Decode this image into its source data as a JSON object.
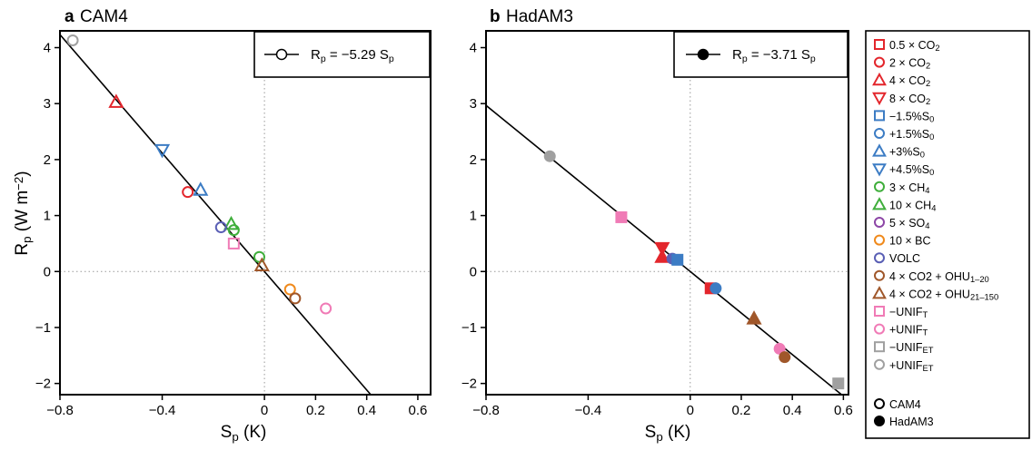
{
  "chart_data": [
    {
      "type": "scatter",
      "panel_letter": "a",
      "title": "CAM4",
      "xlabel": "S_p (K)",
      "ylabel": "R_p (W m^-2)",
      "xlim": [
        -0.8,
        0.65
      ],
      "ylim": [
        -2.2,
        4.3
      ],
      "xticks": [
        -0.8,
        -0.4,
        0,
        0.2,
        0.4,
        0.6
      ],
      "xticklabels": [
        "−0.8",
        "−0.4",
        "0",
        "0.2",
        "0.4",
        "0.6"
      ],
      "yticks": [
        -2,
        -1,
        0,
        1,
        2,
        3,
        4
      ],
      "yticklabels": [
        "−2",
        "−1",
        "0",
        "1",
        "2",
        "3",
        "4"
      ],
      "fit_slope": -5.29,
      "fit_label": "R_p = −5.29 S_p",
      "marker_fill": "open",
      "points": [
        {
          "exp": "4×CO2",
          "x": -0.58,
          "y": 3.03
        },
        {
          "exp": "2×CO2",
          "x": -0.3,
          "y": 1.42
        },
        {
          "exp": "+4.5%S0",
          "x": -0.4,
          "y": 2.17
        },
        {
          "exp": "+3%S0",
          "x": -0.25,
          "y": 1.46
        },
        {
          "exp": "10×CH4",
          "x": -0.13,
          "y": 0.85
        },
        {
          "exp": "3×CH4",
          "x": -0.12,
          "y": 0.74
        },
        {
          "exp": "VOLC",
          "x": -0.17,
          "y": 0.79
        },
        {
          "exp": "−UNIFT",
          "x": -0.12,
          "y": 0.5
        },
        {
          "exp": "3×CH4",
          "x": -0.02,
          "y": 0.26
        },
        {
          "exp": "4×CO2+OHU21–150",
          "x": -0.01,
          "y": 0.11
        },
        {
          "exp": "10×BC",
          "x": 0.1,
          "y": -0.32
        },
        {
          "exp": "4×CO2+OHU1–20",
          "x": 0.12,
          "y": -0.48
        },
        {
          "exp": "+UNIFT",
          "x": 0.24,
          "y": -0.66
        },
        {
          "exp": "+UNIFET",
          "x": -0.75,
          "y": 4.13
        }
      ]
    },
    {
      "type": "scatter",
      "panel_letter": "b",
      "title": "HadAM3",
      "xlabel": "S_p (K)",
      "ylabel": "",
      "xlim": [
        -0.8,
        0.62
      ],
      "ylim": [
        -2.2,
        4.3
      ],
      "xticks": [
        -0.8,
        -0.4,
        0,
        0.2,
        0.4,
        0.6
      ],
      "xticklabels": [
        "−0.8",
        "−0.4",
        "0",
        "0.2",
        "0.4",
        "0.6"
      ],
      "yticks": [
        -2,
        -1,
        0,
        1,
        2,
        3,
        4
      ],
      "yticklabels": [
        "−2",
        "−1",
        "0",
        "1",
        "2",
        "3",
        "4"
      ],
      "fit_slope": -3.71,
      "fit_label": "R_p = −3.71 S_p",
      "marker_fill": "filled",
      "points": [
        {
          "exp": "+UNIFET",
          "x": -0.55,
          "y": 2.06
        },
        {
          "exp": "−UNIFT",
          "x": -0.27,
          "y": 0.97
        },
        {
          "exp": "8×CO2",
          "x": -0.11,
          "y": 0.42
        },
        {
          "exp": "4×CO2",
          "x": -0.11,
          "y": 0.26
        },
        {
          "exp": "VOLC",
          "x": -0.07,
          "y": 0.23
        },
        {
          "exp": "−1.5%S0",
          "x": -0.05,
          "y": 0.21
        },
        {
          "exp": "0.5×CO2",
          "x": 0.08,
          "y": -0.3
        },
        {
          "exp": "+1.5%S0",
          "x": 0.1,
          "y": -0.3
        },
        {
          "exp": "4×CO2+OHU21–150",
          "x": 0.25,
          "y": -0.84
        },
        {
          "exp": "+UNIFT",
          "x": 0.35,
          "y": -1.38
        },
        {
          "exp": "4×CO2+OHU1–20",
          "x": 0.37,
          "y": -1.53
        },
        {
          "exp": "−UNIFET",
          "x": 0.58,
          "y": -2.0
        }
      ]
    }
  ],
  "legend": {
    "entries": [
      {
        "key": "0.5×CO2",
        "label": "0.5×CO",
        "sub": "2",
        "shape": "square",
        "color": "#e3262c"
      },
      {
        "key": "2×CO2",
        "label": "2×CO",
        "sub": "2",
        "shape": "circle",
        "color": "#e3262c"
      },
      {
        "key": "4×CO2",
        "label": "4×CO",
        "sub": "2",
        "shape": "triangle-up",
        "color": "#e3262c"
      },
      {
        "key": "8×CO2",
        "label": "8×CO",
        "sub": "2",
        "shape": "triangle-down",
        "color": "#e3262c"
      },
      {
        "key": "−1.5%S0",
        "label": "−1.5%S",
        "sub": "0",
        "shape": "square",
        "color": "#3c7cc4"
      },
      {
        "key": "+1.5%S0",
        "label": "+1.5%S",
        "sub": "0",
        "shape": "circle",
        "color": "#3c7cc4"
      },
      {
        "key": "+3%S0",
        "label": "+3%S",
        "sub": "0",
        "shape": "triangle-up",
        "color": "#3c7cc4"
      },
      {
        "key": "+4.5%S0",
        "label": "+4.5%S",
        "sub": "0",
        "shape": "triangle-down",
        "color": "#3c7cc4"
      },
      {
        "key": "3×CH4",
        "label": "3×CH",
        "sub": "4",
        "shape": "circle",
        "color": "#3fae3b"
      },
      {
        "key": "10×CH4",
        "label": "10×CH",
        "sub": "4",
        "shape": "triangle-up",
        "color": "#3fae3b"
      },
      {
        "key": "5×SO4",
        "label": "5×SO",
        "sub": "4",
        "shape": "circle",
        "color": "#8c46a6"
      },
      {
        "key": "10×BC",
        "label": "10×BC",
        "sub": "",
        "shape": "circle",
        "color": "#f08a1c"
      },
      {
        "key": "VOLC",
        "label": "VOLC",
        "sub": "",
        "shape": "circle",
        "color": "#5a5fb5"
      },
      {
        "key": "4×CO2+OHU1–20",
        "label": "4×CO2+OHU",
        "sub": "1–20",
        "shape": "circle",
        "color": "#a0572a"
      },
      {
        "key": "4×CO2+OHU21–150",
        "label": "4×CO2+OHU",
        "sub": "21–150",
        "shape": "triangle-up",
        "color": "#a0572a"
      },
      {
        "key": "−UNIFT",
        "label": "−UNIF",
        "sub": "T",
        "shape": "square",
        "color": "#f07bb6"
      },
      {
        "key": "+UNIFT",
        "label": "+UNIF",
        "sub": "T",
        "shape": "circle",
        "color": "#f07bb6"
      },
      {
        "key": "−UNIFET",
        "label": "−UNIF",
        "sub": "ET",
        "shape": "square",
        "color": "#a0a0a0"
      },
      {
        "key": "+UNIFET",
        "label": "+UNIF",
        "sub": "ET",
        "shape": "circle",
        "color": "#a0a0a0"
      }
    ],
    "model_entries": [
      {
        "label": "CAM4",
        "fill": "open"
      },
      {
        "label": "HadAM3",
        "fill": "filled"
      }
    ]
  }
}
